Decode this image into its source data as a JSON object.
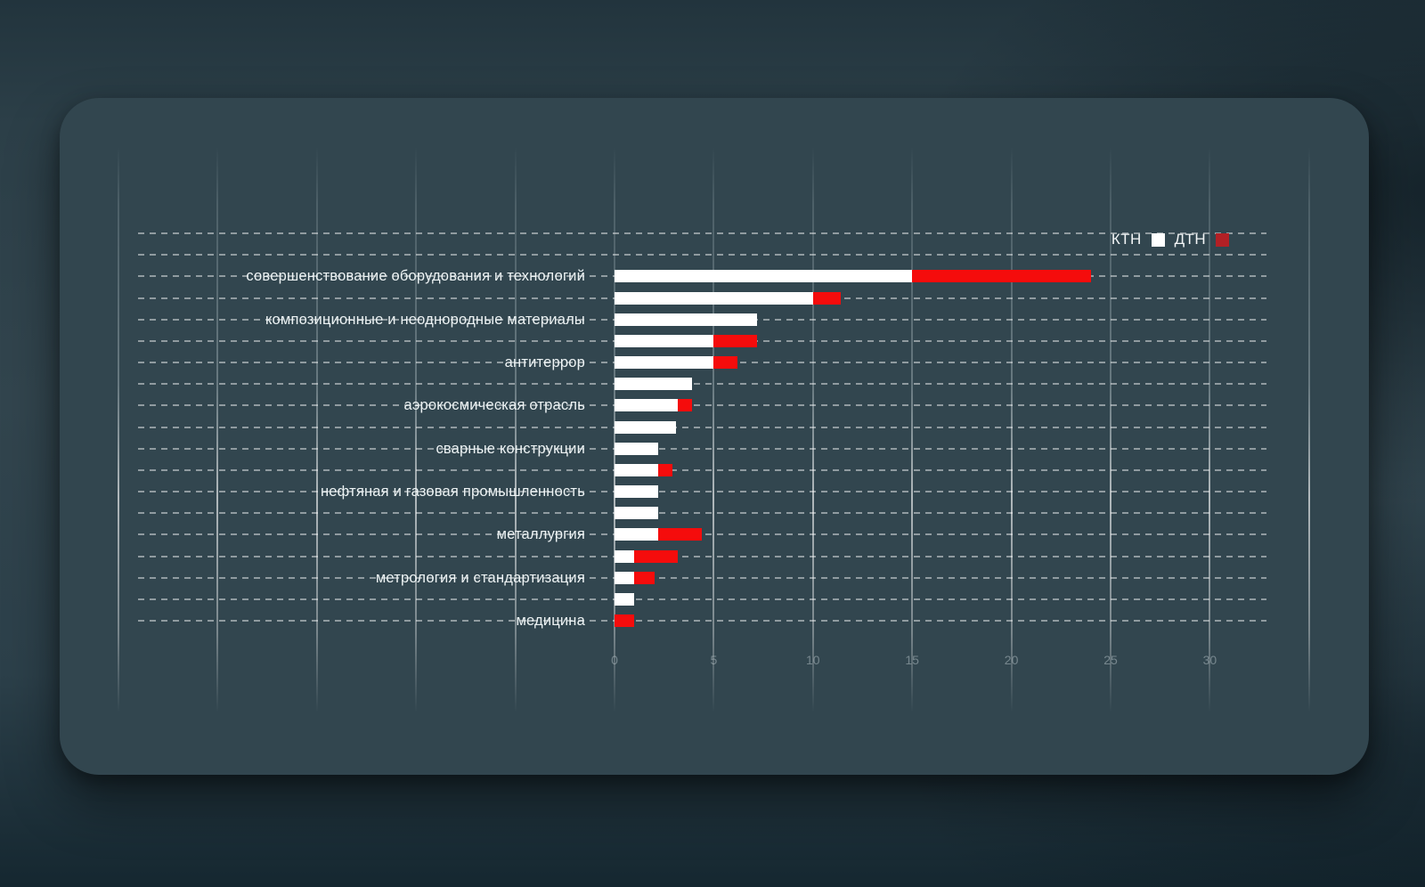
{
  "legend": {
    "items": [
      {
        "label": "КТН",
        "color": "#ffffff"
      },
      {
        "label": "ДТН",
        "color": "#b22025"
      }
    ]
  },
  "chart_data": {
    "type": "bar",
    "orientation": "horizontal",
    "stacked": true,
    "bars_per_category": 2,
    "series": [
      "КТН",
      "ДТН"
    ],
    "series_colors": {
      "КТН": "#ffffff",
      "ДТН": "#f50c0c"
    },
    "categories": [
      "совершенствование оборудования и технологий",
      "композиционные и неоднородные материалы",
      "антитеррор",
      "аэрокосмическая отрасль",
      "сварные конструкции",
      "нефтяная и газовая промышленность",
      "металлургия",
      "метрология и стандартизация",
      "медицина"
    ],
    "values": [
      {
        "category": "совершенствование оборудования и технологий",
        "bars": [
          {
            "КТН": 15,
            "ДТН": 9
          },
          {
            "КТН": 10,
            "ДТН": 1.4
          }
        ]
      },
      {
        "category": "композиционные и неоднородные материалы",
        "bars": [
          {
            "КТН": 7.2,
            "ДТН": 0
          },
          {
            "КТН": 5,
            "ДТН": 2.2
          }
        ]
      },
      {
        "category": "антитеррор",
        "bars": [
          {
            "КТН": 5,
            "ДТН": 1.2
          },
          {
            "КТН": 3.9,
            "ДТН": 0
          }
        ]
      },
      {
        "category": "аэрокосмическая отрасль",
        "bars": [
          {
            "КТН": 3.2,
            "ДТН": 0.7
          },
          {
            "КТН": 3.1,
            "ДТН": 0
          }
        ]
      },
      {
        "category": "сварные конструкции",
        "bars": [
          {
            "КТН": 2.2,
            "ДТН": 0
          },
          {
            "КТН": 2.2,
            "ДТН": 0.7
          }
        ]
      },
      {
        "category": "нефтяная и газовая промышленность",
        "bars": [
          {
            "КТН": 2.2,
            "ДТН": 0
          },
          {
            "КТН": 2.2,
            "ДТН": 0
          }
        ]
      },
      {
        "category": "металлургия",
        "bars": [
          {
            "КТН": 2.2,
            "ДТН": 2.2
          },
          {
            "КТН": 1,
            "ДТН": 2.2
          }
        ]
      },
      {
        "category": "метрология и стандартизация",
        "bars": [
          {
            "КТН": 1,
            "ДТН": 1
          },
          {
            "КТН": 1,
            "ДТН": 0
          }
        ]
      },
      {
        "category": "медицина",
        "bars": [
          {
            "КТН": 0,
            "ДТН": 1
          },
          {
            "КТН": 0,
            "ДТН": 0
          }
        ]
      }
    ],
    "x_ticks": [
      0,
      5,
      10,
      15,
      20,
      25,
      30
    ],
    "xlim": [
      0,
      35
    ],
    "grid": {
      "vertical_lines": true,
      "horizontal_dashed_rows": true
    },
    "legend_position": "top-right"
  }
}
